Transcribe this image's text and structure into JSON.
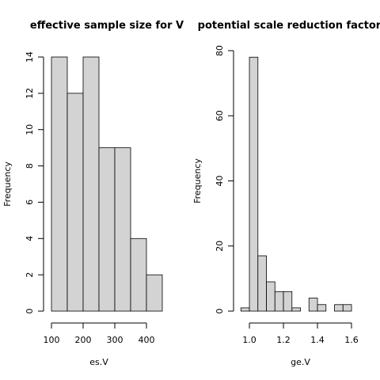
{
  "chart_data": [
    {
      "type": "histogram",
      "title": "effective sample size for V",
      "x_label": "es.V",
      "y_label": "Frequency",
      "bins": [
        100,
        150,
        200,
        250,
        300,
        350,
        400,
        450
      ],
      "values": [
        14,
        12,
        14,
        9,
        9,
        4,
        2
      ],
      "color": "#d3d3d3",
      "xlim": [
        86,
        464
      ],
      "xticks": [
        100,
        200,
        300,
        400
      ],
      "ylim": [
        0,
        14
      ],
      "yticks": [
        0,
        2,
        4,
        6,
        8,
        10,
        12,
        14
      ]
    },
    {
      "type": "histogram",
      "title": "potential scale reduction factor fo",
      "x_label": "ge.V",
      "y_label": "Frequency",
      "bins": [
        0.95,
        1.0,
        1.05,
        1.1,
        1.15,
        1.2,
        1.25,
        1.3,
        1.35,
        1.4,
        1.45,
        1.5,
        1.55,
        1.6
      ],
      "values": [
        1,
        78,
        17,
        9,
        6,
        6,
        1,
        0,
        4,
        2,
        0,
        2,
        2
      ],
      "color": "#d3d3d3",
      "xlim": [
        0.924,
        1.626
      ],
      "xticks": [
        {
          "value": 1.0,
          "label": "1.0"
        },
        {
          "value": 1.2,
          "label": "1.2"
        },
        {
          "value": 1.4,
          "label": "1.4"
        },
        {
          "value": 1.6,
          "label": "1.6"
        }
      ],
      "ylim": [
        0,
        80
      ],
      "yticks": [
        0,
        20,
        40,
        60,
        80
      ]
    }
  ]
}
